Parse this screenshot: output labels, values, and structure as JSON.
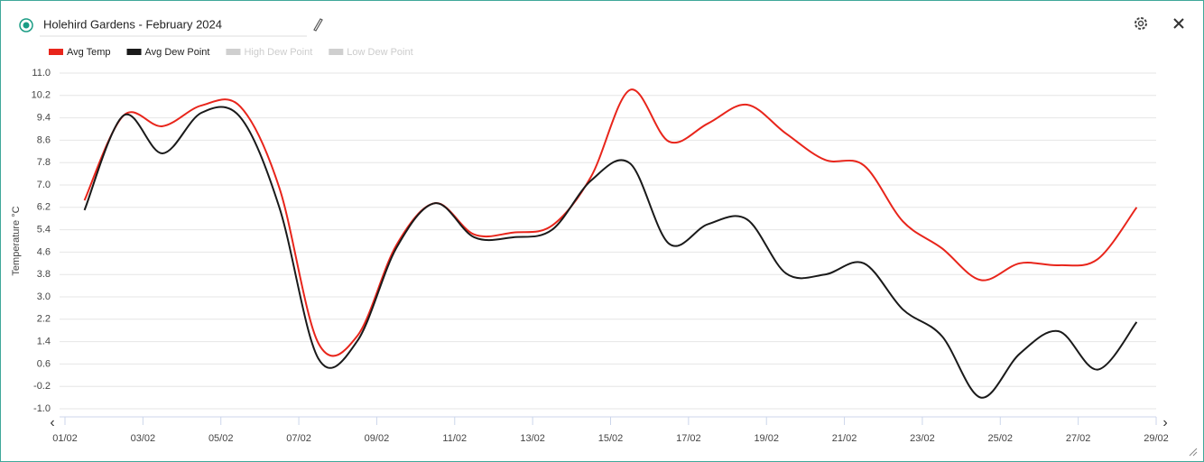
{
  "chart_data": {
    "type": "line",
    "title": "Holehird Gardens - February 2024",
    "y_label": "Temperature °C",
    "categories": [
      "01/02",
      null,
      "03/02",
      null,
      "05/02",
      null,
      "07/02",
      null,
      "09/02",
      null,
      "11/02",
      null,
      "13/02",
      null,
      "15/02",
      null,
      "17/02",
      null,
      "19/02",
      null,
      "21/02",
      null,
      "23/02",
      null,
      "25/02",
      null,
      "27/02",
      null,
      "29/02"
    ],
    "series": [
      {
        "name": "Avg Temp",
        "color": "#e8251b",
        "values": [
          6.45,
          9.48,
          9.1,
          9.84,
          9.8,
          6.9,
          1.35,
          1.6,
          4.84,
          6.35,
          5.23,
          5.3,
          5.55,
          7.3,
          10.4,
          8.55,
          9.2,
          9.87,
          8.84,
          7.9,
          7.7,
          5.7,
          4.74,
          3.6,
          4.2,
          4.13,
          4.35,
          6.2,
          null
        ]
      },
      {
        "name": "Avg Dew Point",
        "color": "#1a1a1a",
        "values": [
          6.1,
          9.48,
          8.13,
          9.58,
          9.42,
          6.2,
          0.8,
          1.42,
          4.74,
          6.35,
          5.13,
          5.13,
          5.4,
          7.16,
          7.77,
          4.9,
          5.6,
          5.77,
          3.84,
          3.8,
          4.2,
          2.55,
          1.6,
          -0.6,
          0.97,
          1.77,
          0.4,
          2.1,
          null
        ]
      }
    ],
    "hidden_series": [
      {
        "name": "High Dew Point",
        "color": "#cfcfcf"
      },
      {
        "name": "Low Dew Point",
        "color": "#cfcfcf"
      }
    ],
    "ylim": [
      -1.0,
      11.0
    ],
    "yticks": [
      {
        "value": -1.0,
        "label": "-1.0"
      },
      -0.2,
      0.6,
      1.4,
      2.2,
      {
        "value": 3.0,
        "label": "3.0"
      },
      3.8,
      4.6,
      5.4,
      6.2,
      {
        "value": 7.0,
        "label": "7.0"
      },
      7.8,
      8.6,
      9.4,
      10.2,
      {
        "value": 11.0,
        "label": "11.0"
      }
    ],
    "grid": true
  }
}
